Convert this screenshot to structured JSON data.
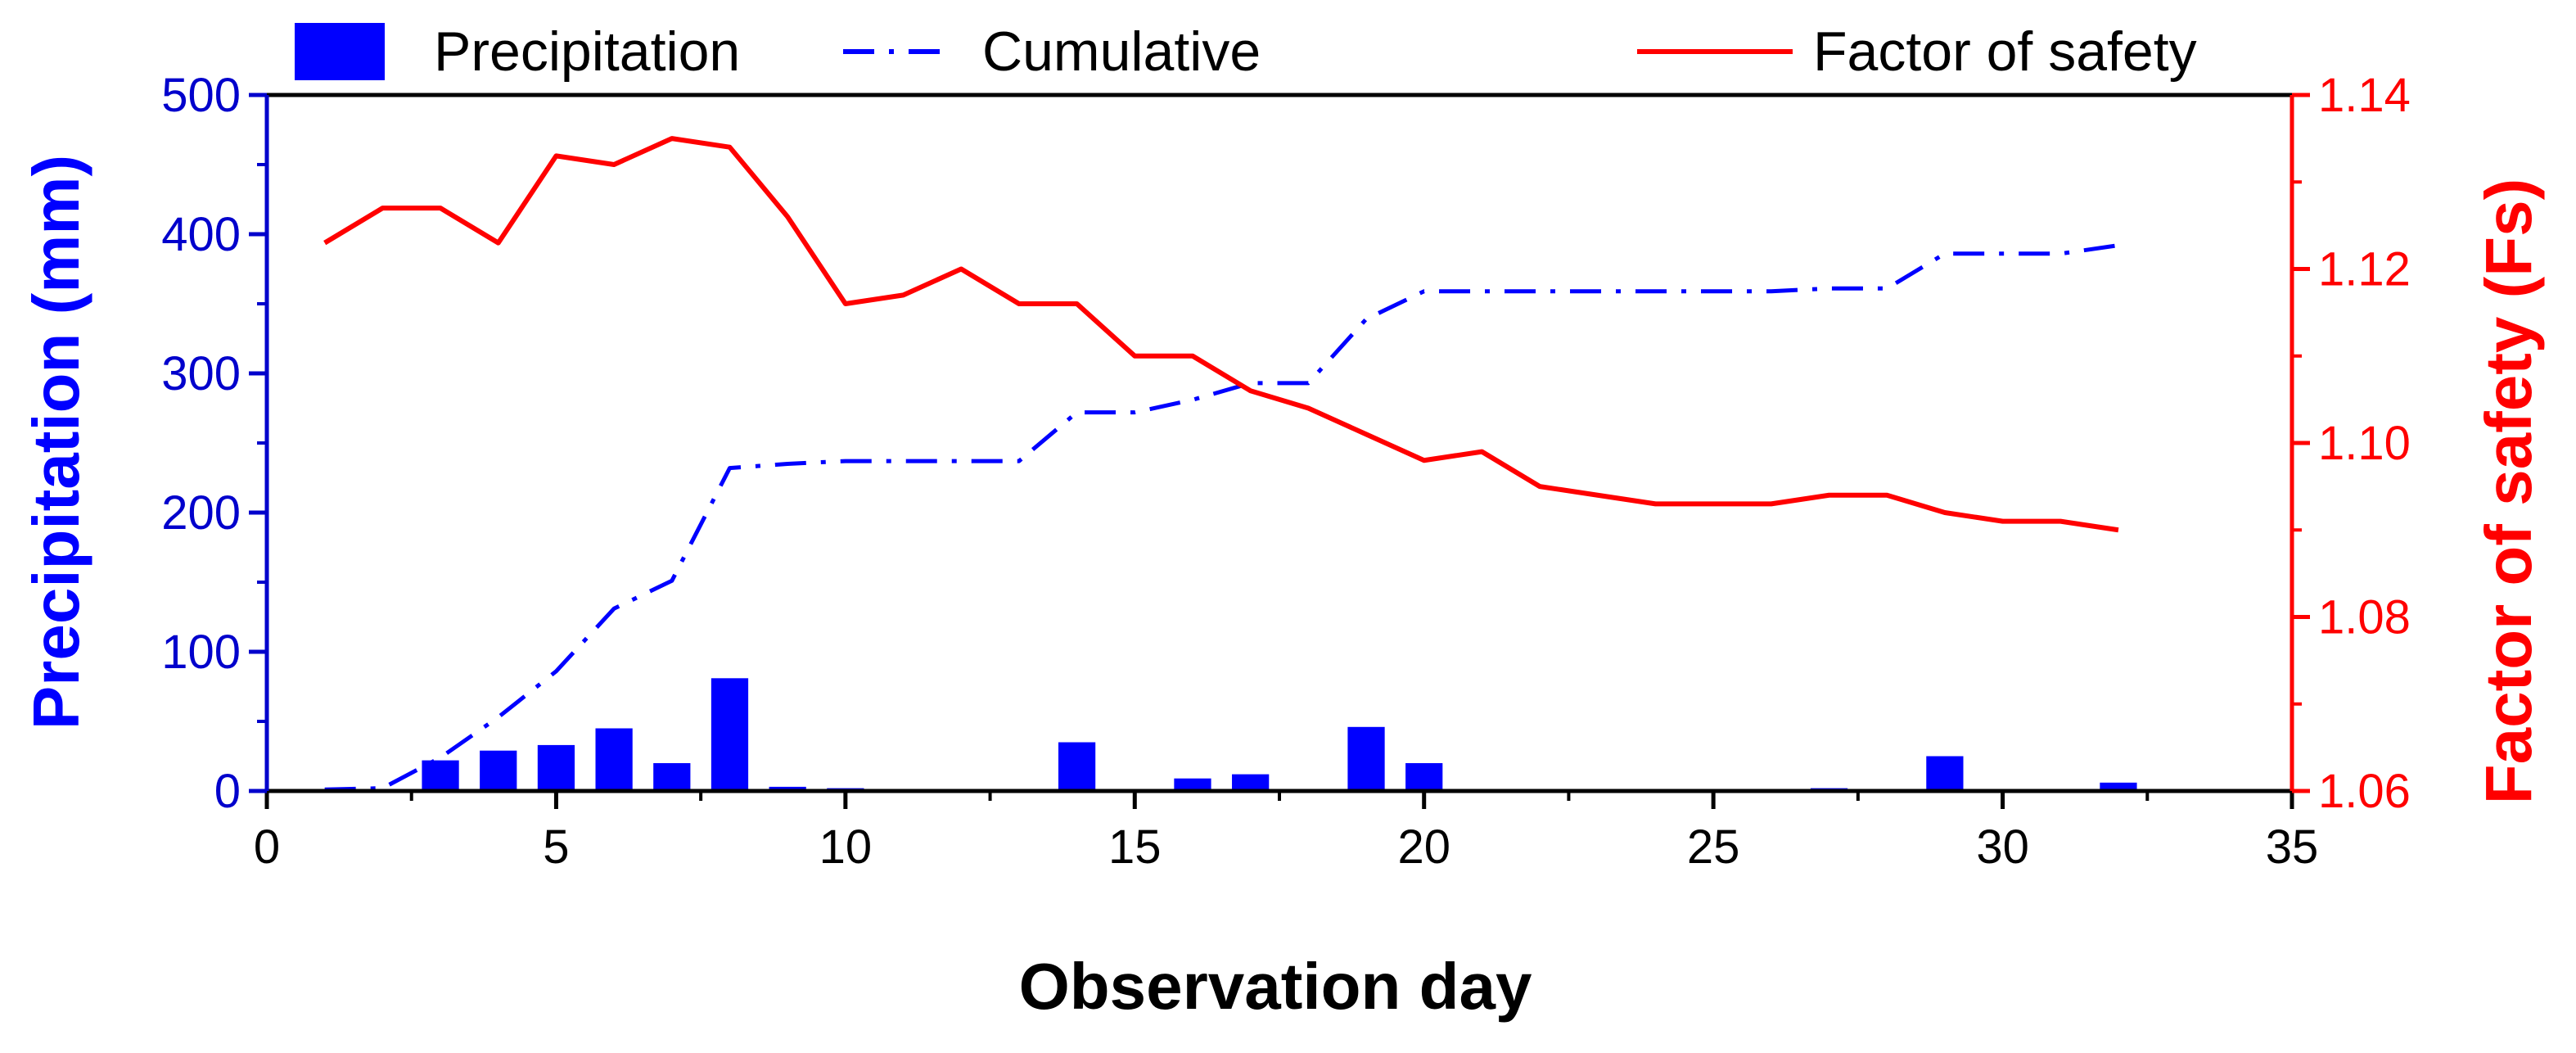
{
  "chart_data": {
    "type": "bar+line",
    "title": "",
    "xlabel": "Observation day",
    "ylabel_left": "Precipitation (mm)",
    "ylabel_right": "Factor of safety (Fs)",
    "xlim": [
      0,
      35
    ],
    "ylim_left": [
      0,
      500
    ],
    "ylim_right": [
      1.06,
      1.14
    ],
    "x_ticks": [
      0,
      5,
      10,
      15,
      20,
      25,
      30,
      35
    ],
    "y_left_ticks": [
      0,
      100,
      200,
      300,
      400,
      500
    ],
    "y_right_ticks": [
      "1.06",
      "1.08",
      "1.10",
      "1.12",
      "1.14"
    ],
    "grid": false,
    "legend_position": "top",
    "colors": {
      "precipitation": "#0000ff",
      "cumulative": "#0000ff",
      "factor_of_safety": "#ff0000",
      "left_axis": "#0000cc",
      "right_axis": "#ff0000"
    },
    "series": [
      {
        "name": "Precipitation",
        "type": "bar",
        "axis": "left",
        "x": [
          1,
          2,
          3,
          4,
          5,
          6,
          7,
          8,
          9,
          10,
          14,
          16,
          17,
          19,
          20,
          27,
          29,
          32
        ],
        "values": [
          1,
          1,
          22,
          29,
          33,
          45,
          20,
          81,
          3,
          2,
          35,
          9,
          12,
          46,
          20,
          2,
          25,
          6
        ]
      },
      {
        "name": "Cumulative",
        "type": "line",
        "style": "dash-dot",
        "axis": "left",
        "x": [
          1,
          2,
          3,
          4,
          5,
          6,
          7,
          8,
          9,
          10,
          11,
          12,
          13,
          14,
          15,
          16,
          17,
          18,
          19,
          20,
          21,
          22,
          23,
          24,
          25,
          26,
          27,
          28,
          29,
          30,
          31,
          32
        ],
        "values": [
          1,
          2,
          24,
          53,
          86,
          131,
          151,
          232,
          235,
          237,
          237,
          237,
          237,
          272,
          272,
          281,
          293,
          293,
          339,
          359,
          359,
          359,
          359,
          359,
          359,
          359,
          361,
          361,
          386,
          386,
          386,
          392
        ]
      },
      {
        "name": "Factor of safety",
        "type": "line",
        "style": "solid",
        "axis": "right",
        "x": [
          1,
          2,
          3,
          4,
          5,
          6,
          7,
          8,
          9,
          10,
          11,
          12,
          13,
          14,
          15,
          16,
          17,
          18,
          19,
          20,
          21,
          22,
          23,
          24,
          25,
          26,
          27,
          28,
          29,
          30,
          31,
          32
        ],
        "values": [
          1.123,
          1.127,
          1.127,
          1.123,
          1.133,
          1.132,
          1.135,
          1.134,
          1.126,
          1.116,
          1.117,
          1.12,
          1.116,
          1.116,
          1.11,
          1.11,
          1.106,
          1.104,
          1.101,
          1.098,
          1.099,
          1.095,
          1.094,
          1.093,
          1.093,
          1.093,
          1.094,
          1.094,
          1.092,
          1.091,
          1.091,
          1.09
        ]
      }
    ],
    "legend": [
      {
        "label": "Precipitation",
        "symbol": "bar"
      },
      {
        "label": "Cumulative",
        "symbol": "dash-dot"
      },
      {
        "label": "Factor of safety",
        "symbol": "solid"
      }
    ]
  }
}
